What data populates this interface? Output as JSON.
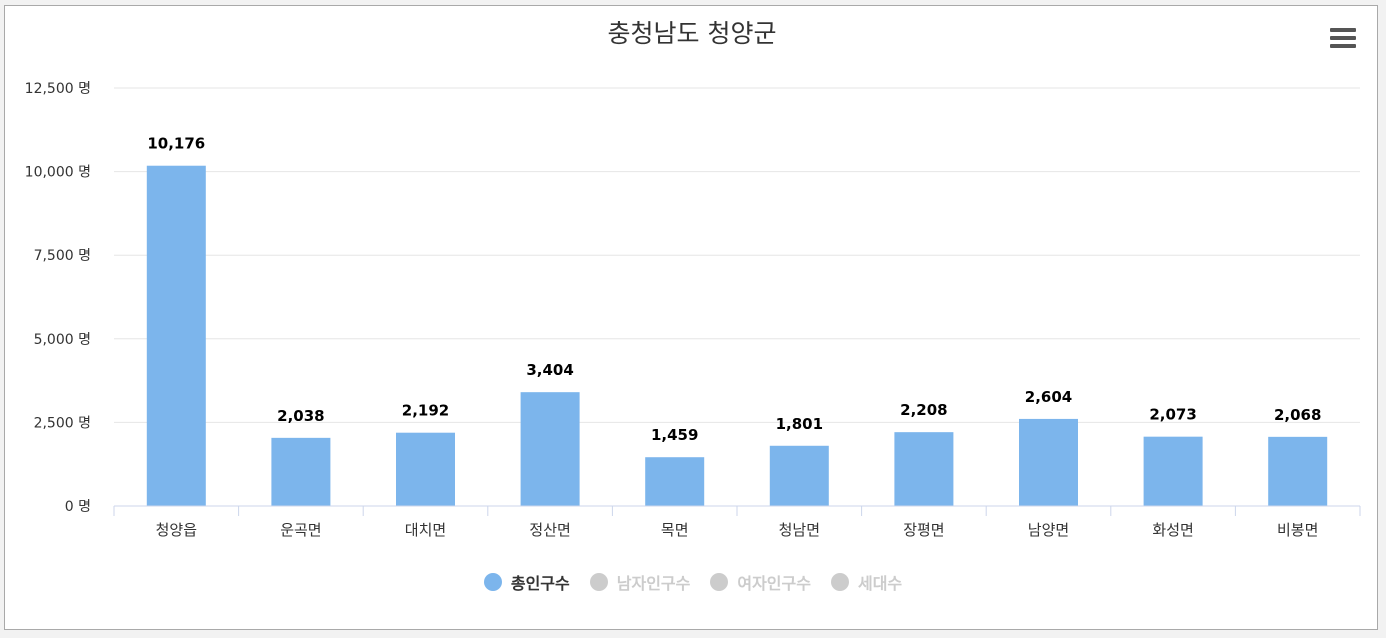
{
  "chart_data": {
    "type": "bar",
    "title": "충청남도 청양군",
    "categories": [
      "청양읍",
      "운곡면",
      "대치면",
      "정산면",
      "목면",
      "청남면",
      "장평면",
      "남양면",
      "화성면",
      "비봉면"
    ],
    "series": [
      {
        "name": "총인구수",
        "values": [
          10176,
          2038,
          2192,
          3404,
          1459,
          1801,
          2208,
          2604,
          2073,
          2068
        ],
        "value_labels": [
          "10,176",
          "2,038",
          "2,192",
          "3,404",
          "1,459",
          "1,801",
          "2,208",
          "2,604",
          "2,073",
          "2,068"
        ],
        "color": "#7cb5ec",
        "visible": true
      },
      {
        "name": "남자인구수",
        "visible": false
      },
      {
        "name": "여자인구수",
        "visible": false
      },
      {
        "name": "세대수",
        "visible": false
      }
    ],
    "ylim": [
      0,
      12500
    ],
    "y_ticks": [
      0,
      2500,
      5000,
      7500,
      10000,
      12500
    ],
    "y_tick_labels": [
      "0 명",
      "2,500 명",
      "5,000 명",
      "7,500 명",
      "10,000 명",
      "12,500 명"
    ],
    "grid": true,
    "legend_position": "bottom-center"
  },
  "legend": {
    "items": [
      {
        "label": "총인구수",
        "active": true,
        "dot_color": "#7cb5ec",
        "text_color": "#333333"
      },
      {
        "label": "남자인구수",
        "active": false,
        "dot_color": "#cccccc",
        "text_color": "#cccccc"
      },
      {
        "label": "여자인구수",
        "active": false,
        "dot_color": "#cccccc",
        "text_color": "#cccccc"
      },
      {
        "label": "세대수",
        "active": false,
        "dot_color": "#cccccc",
        "text_color": "#cccccc"
      }
    ]
  },
  "toolbar": {
    "menu_icon": "hamburger-menu-icon"
  },
  "colors": {
    "bar": "#7cb5ec",
    "grid": "#e6e6e6",
    "axis": "#ccd6eb",
    "label": "#333333",
    "title": "#333333",
    "inactive": "#cccccc"
  }
}
